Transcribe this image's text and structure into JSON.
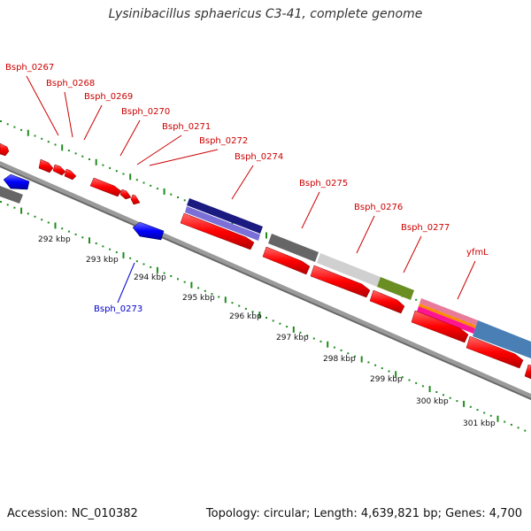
{
  "title": "Lysinibacillus sphaericus C3-41, complete genome",
  "footer": {
    "accession": "Accession: NC_010382",
    "summary": "Topology: circular; Length: 4,639,821 bp; Genes: 4,700"
  },
  "colors": {
    "forward_cds": "#ff0000",
    "reverse_cds": "#0000ff",
    "label_forward": "#cc0000",
    "label_reverse": "#0000cc",
    "backbone": "#888888",
    "gc_ticks": "#1e8c1e"
  },
  "scale_labels": [
    "292 kbp",
    "293 kbp",
    "294 kbp",
    "295 kbp",
    "296 kbp",
    "297 kbp",
    "298 kbp",
    "299 kbp",
    "300 kbp",
    "301 kbp"
  ],
  "gene_labels": [
    {
      "text": "Bsph_0267",
      "strand": "forward"
    },
    {
      "text": "Bsph_0268",
      "strand": "forward"
    },
    {
      "text": "Bsph_0269",
      "strand": "forward"
    },
    {
      "text": "Bsph_0270",
      "strand": "forward"
    },
    {
      "text": "Bsph_0271",
      "strand": "forward"
    },
    {
      "text": "Bsph_0272",
      "strand": "forward"
    },
    {
      "text": "Bsph_0274",
      "strand": "forward"
    },
    {
      "text": "Bsph_0275",
      "strand": "forward"
    },
    {
      "text": "Bsph_0276",
      "strand": "forward"
    },
    {
      "text": "Bsph_0277",
      "strand": "forward"
    },
    {
      "text": "yfmL",
      "strand": "forward"
    },
    {
      "text": "Bsph_0273",
      "strand": "reverse"
    }
  ]
}
